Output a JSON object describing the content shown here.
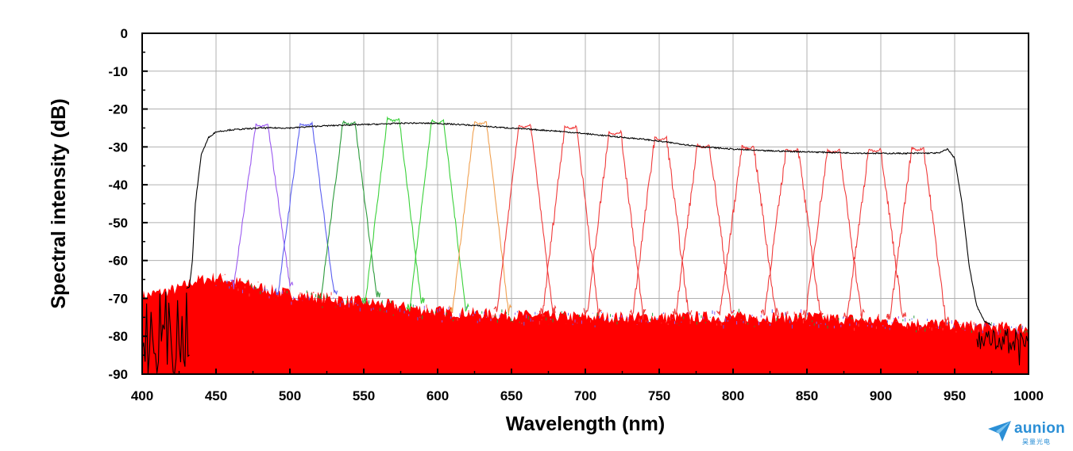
{
  "chart_data": {
    "type": "line",
    "title": "",
    "xlabel": "Wavelength (nm)",
    "ylabel": "Spectral intensity (dB)",
    "xlim": [
      400,
      1000
    ],
    "ylim": [
      -90,
      0
    ],
    "xticks": [
      "400",
      "450",
      "500",
      "550",
      "600",
      "650",
      "700",
      "750",
      "800",
      "850",
      "900",
      "950",
      "1000"
    ],
    "yticks": [
      "0",
      "-10",
      "-20",
      "-30",
      "-40",
      "-50",
      "-60",
      "-70",
      "-80",
      "-90"
    ],
    "grid": true,
    "legend": "none",
    "broadband_envelope": {
      "color": "#000000",
      "x": [
        400,
        432,
        434,
        436,
        440,
        445,
        450,
        460,
        480,
        500,
        520,
        540,
        560,
        580,
        600,
        620,
        640,
        660,
        680,
        700,
        720,
        740,
        760,
        780,
        800,
        820,
        840,
        860,
        880,
        900,
        920,
        940,
        945,
        950,
        955,
        960,
        965,
        970,
        980,
        1000
      ],
      "y": [
        -72,
        -67,
        -60,
        -45,
        -32,
        -27.5,
        -26,
        -25.5,
        -25,
        -25,
        -24.5,
        -24.2,
        -24,
        -23.7,
        -23.8,
        -24.2,
        -24.8,
        -25.3,
        -25.8,
        -26.5,
        -27.3,
        -28,
        -29,
        -30,
        -30.6,
        -31,
        -31.2,
        -31.4,
        -31.6,
        -31.7,
        -31.7,
        -31.6,
        -30.5,
        -33,
        -45,
        -62,
        -72,
        -76,
        -78,
        -79
      ]
    },
    "filters": [
      {
        "center": 481,
        "peak": -24,
        "color": "#9b59f0"
      },
      {
        "center": 511,
        "peak": -23.8,
        "color": "#5a5ef0"
      },
      {
        "center": 540,
        "peak": -23.3,
        "color": "#2a9a3a"
      },
      {
        "center": 570,
        "peak": -22.5,
        "color": "#3ad13a"
      },
      {
        "center": 600,
        "peak": -23,
        "color": "#3ad13a"
      },
      {
        "center": 629,
        "peak": -23.3,
        "color": "#f0a050"
      },
      {
        "center": 659,
        "peak": -24.2,
        "color": "#f03a3a"
      },
      {
        "center": 690,
        "peak": -24.5,
        "color": "#f03a3a"
      },
      {
        "center": 720,
        "peak": -26,
        "color": "#f03a3a"
      },
      {
        "center": 751,
        "peak": -27.5,
        "color": "#f03a3a"
      },
      {
        "center": 780,
        "peak": -29.5,
        "color": "#f03a3a"
      },
      {
        "center": 810,
        "peak": -29.8,
        "color": "#f03a3a"
      },
      {
        "center": 840,
        "peak": -30.5,
        "color": "#f03a3a"
      },
      {
        "center": 868,
        "peak": -30.8,
        "color": "#f03a3a"
      },
      {
        "center": 896,
        "peak": -30.5,
        "color": "#f03a3a"
      },
      {
        "center": 925,
        "peak": -30.2,
        "color": "#f03a3a"
      }
    ],
    "noise_floor": {
      "color": "#ff0000",
      "x": [
        400,
        425,
        435,
        450,
        500,
        550,
        600,
        650,
        700,
        750,
        800,
        850,
        900,
        950,
        970,
        1000
      ],
      "top": [
        -70,
        -68,
        -66,
        -65,
        -69.5,
        -71.5,
        -74,
        -75,
        -75.5,
        -75.5,
        -75.5,
        -75.5,
        -76.5,
        -77.5,
        -78,
        -78.5
      ]
    }
  },
  "logo": {
    "name": "aunion",
    "subtitle": "昊量光电",
    "color": "#2b8fd6"
  }
}
